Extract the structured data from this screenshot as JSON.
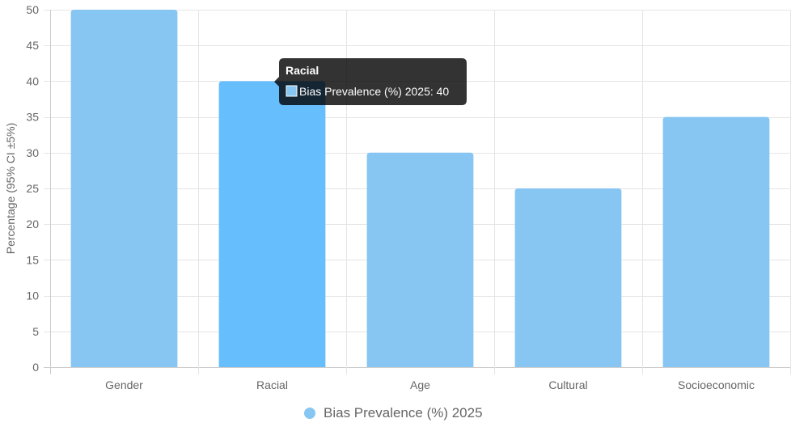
{
  "chart_data": {
    "type": "bar",
    "categories": [
      "Gender",
      "Racial",
      "Age",
      "Cultural",
      "Socioeconomic"
    ],
    "series": [
      {
        "name": "Bias Prevalence (%) 2025",
        "values": [
          50,
          40,
          30,
          25,
          35
        ],
        "color": "#87C6F2",
        "hover_color": "#66BFFC"
      }
    ],
    "title": "",
    "xlabel": "",
    "ylabel": "Percentage (95% CI ±5%)",
    "ylim": [
      0,
      50
    ],
    "yticks": [
      0,
      5,
      10,
      15,
      20,
      25,
      30,
      35,
      40,
      45,
      50
    ],
    "grid": true,
    "grid_color": "#e5e5e5",
    "legend": {
      "position": "bottom",
      "label": "Bias Prevalence (%) 2025",
      "marker_color": "#87C6F2"
    },
    "tooltip": {
      "category_index": 1,
      "title": "Racial",
      "body": "Bias Prevalence (%) 2025: 40"
    }
  }
}
